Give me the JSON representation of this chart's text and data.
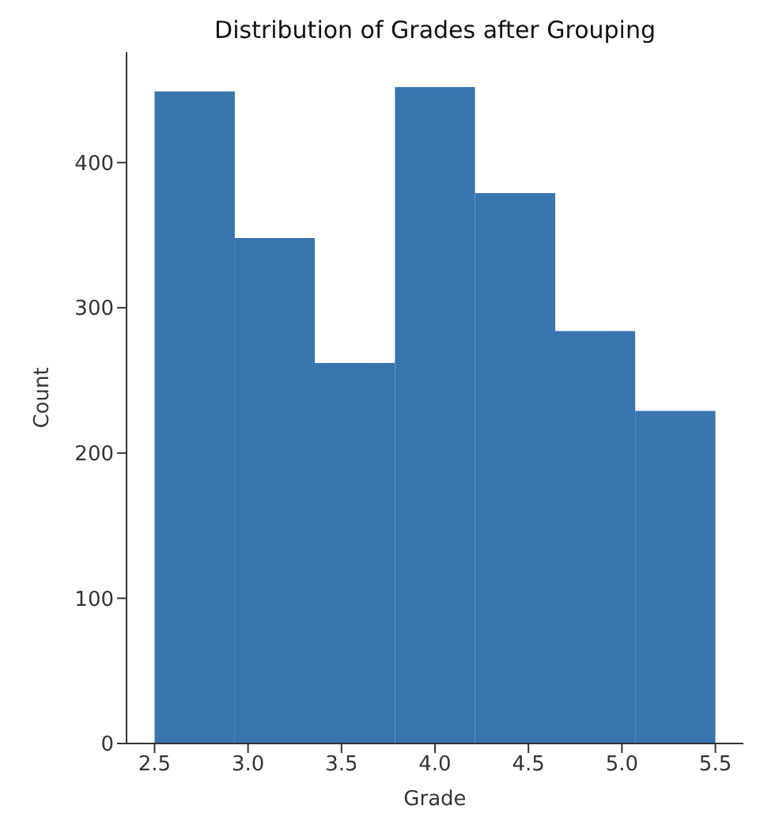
{
  "chart_data": {
    "type": "histogram",
    "title": "Distribution of Grades after Grouping",
    "xlabel": "Grade",
    "ylabel": "Count",
    "bins": [
      2.5,
      2.929,
      3.357,
      3.786,
      4.214,
      4.643,
      5.071,
      5.5
    ],
    "values": [
      449,
      348,
      262,
      452,
      379,
      284,
      229
    ],
    "color": "#3874ae",
    "xlim": [
      2.35,
      5.65
    ],
    "ylim": [
      0,
      476
    ],
    "xticks": [
      2.5,
      {
        "value": 3,
        "label": "3.0"
      },
      3.5,
      {
        "value": 4,
        "label": "4.0"
      },
      4.5,
      {
        "value": 5,
        "label": "5.0"
      },
      5.5
    ],
    "yticks": [
      0,
      100,
      200,
      300,
      400
    ]
  }
}
